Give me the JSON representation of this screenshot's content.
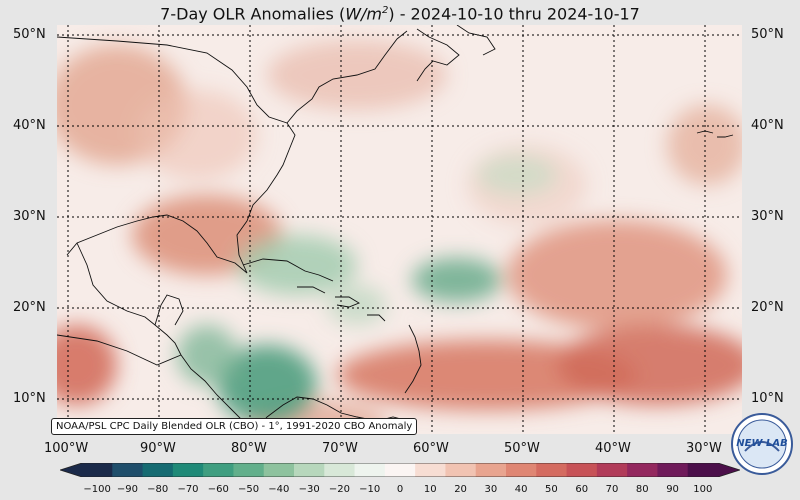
{
  "title": {
    "prefix": "7-Day OLR Anomalies (",
    "unit_base": "W/m",
    "unit_exp": "2",
    "suffix": ") - 2024-10-10 thru 2024-10-17"
  },
  "lat_labels": [
    "50°N",
    "40°N",
    "30°N",
    "20°N",
    "10°N"
  ],
  "lon_labels": [
    "100°W",
    "90°W",
    "80°W",
    "70°W",
    "60°W",
    "50°W",
    "40°W",
    "30°W"
  ],
  "credit": "NOAA/PSL CPC Daily Blended OLR (CBO) - 1°, 1991-2020 CBO Anomaly",
  "colorbar": {
    "ticks": [
      "−100",
      "−90",
      "−80",
      "−70",
      "−60",
      "−50",
      "−40",
      "−30",
      "−20",
      "−10",
      "0",
      "10",
      "20",
      "30",
      "40",
      "50",
      "60",
      "70",
      "80",
      "90",
      "100"
    ],
    "colors": [
      "#1b2a4a",
      "#1f4e6b",
      "#166b72",
      "#1f8a78",
      "#3f9e80",
      "#62af8b",
      "#8ec29e",
      "#b7d7bc",
      "#d8e8d8",
      "#eef4ee",
      "#fbf5f3",
      "#f7ddd3",
      "#f1c3b2",
      "#e8a48f",
      "#df8673",
      "#d46b60",
      "#c75257",
      "#b13b59",
      "#93285e",
      "#6f1a5a",
      "#4b0f4a"
    ]
  },
  "logo": {
    "text": "NEW LAB"
  },
  "colors": {
    "positive": "#d9806b",
    "negative": "#4f9f7f",
    "neutral": "#f7ece8"
  }
}
